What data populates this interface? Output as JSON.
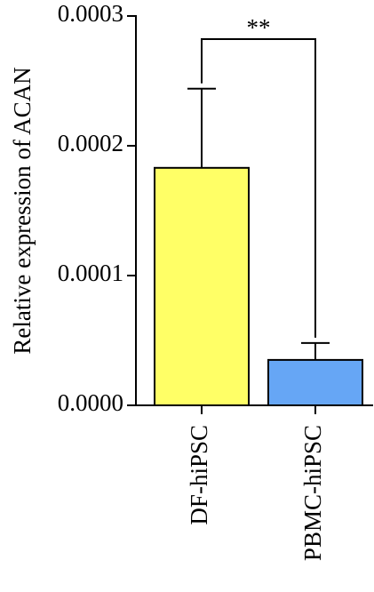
{
  "chart_data": {
    "type": "bar",
    "ylabel": "Relative expression of ACAN",
    "categories": [
      "DF-hiPSC",
      "PBMC-hiPSC"
    ],
    "values": [
      0.000183,
      3.5e-05
    ],
    "errors": [
      6.1e-05,
      1.3e-05
    ],
    "colors": [
      "#ffff66",
      "#66a6f5"
    ],
    "ylim": [
      0,
      0.0003
    ],
    "yticks": [
      {
        "value": 0,
        "label": "0.0000"
      },
      {
        "value": 0.0001,
        "label": "0.0001"
      },
      {
        "value": 0.0002,
        "label": "0.0002"
      },
      {
        "value": 0.0003,
        "label": "0.0003"
      }
    ],
    "annotation": "**"
  }
}
